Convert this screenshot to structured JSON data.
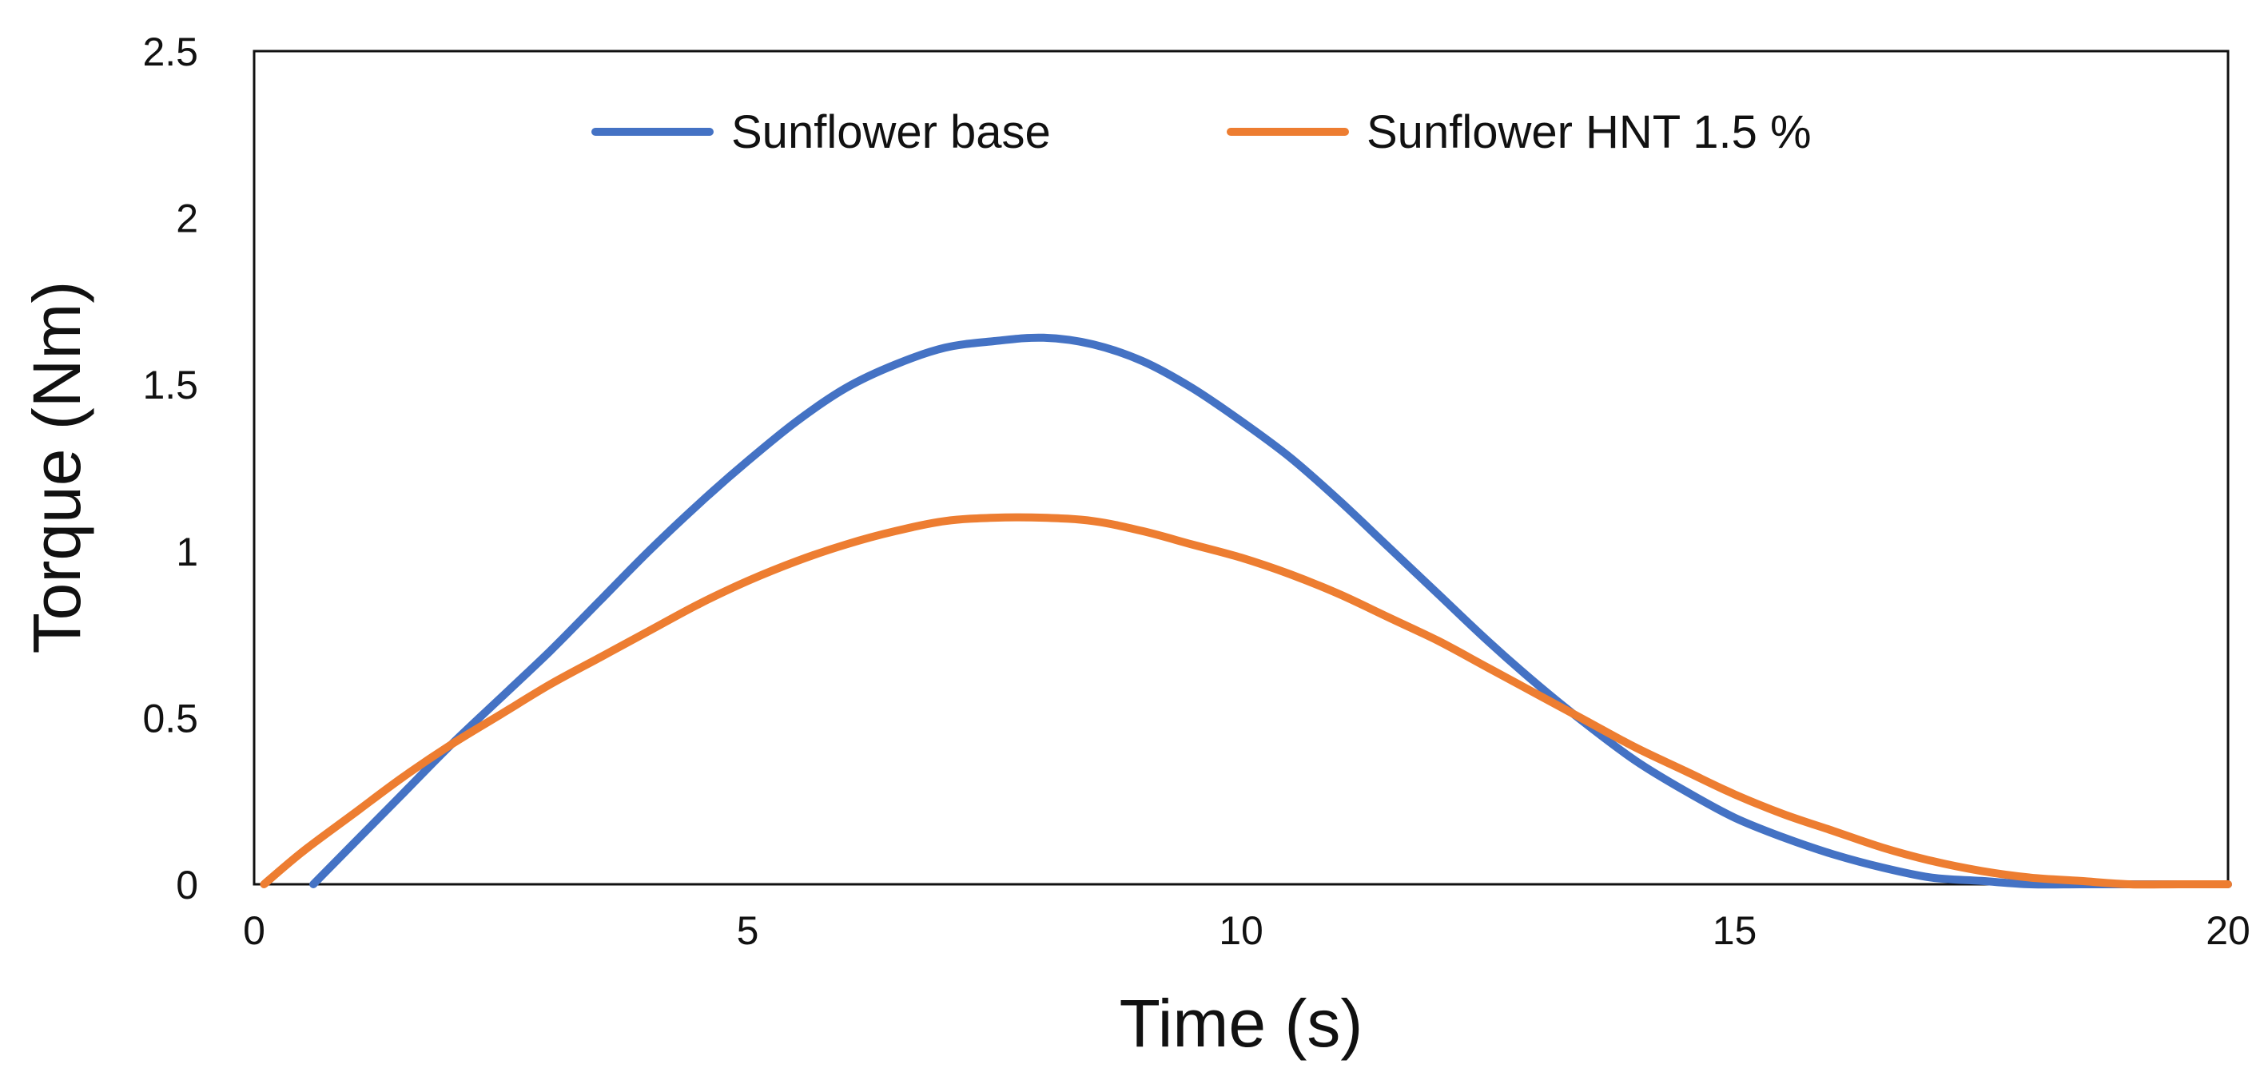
{
  "chart_data": {
    "type": "line",
    "title": "",
    "xlabel": "Time (s)",
    "ylabel": "Torque (Nm)",
    "xlim": [
      0,
      20
    ],
    "ylim": [
      0,
      2.5
    ],
    "xticks": [
      0,
      5,
      10,
      15,
      20
    ],
    "xtick_labels": [
      "0",
      "5",
      "10",
      "15",
      "20"
    ],
    "yticks": [
      0,
      0.5,
      1,
      1.5,
      2,
      2.5
    ],
    "ytick_labels": [
      "0",
      "0.5",
      "1",
      "1.5",
      "2",
      "2.5"
    ],
    "grid": false,
    "legend_position": "top-center",
    "series": [
      {
        "name": "Sunflower base",
        "color": "#4472C4",
        "x": [
          0.6,
          1,
          1.5,
          2,
          2.5,
          3,
          3.5,
          4,
          4.5,
          5,
          5.5,
          6,
          6.5,
          7,
          7.5,
          8,
          8.5,
          9,
          9.5,
          10,
          10.5,
          11,
          11.5,
          12,
          12.5,
          13,
          13.5,
          14,
          14.5,
          15,
          15.5,
          16,
          16.5,
          17,
          17.5,
          18,
          18.5,
          19,
          19.5,
          20
        ],
        "y": [
          0,
          0.12,
          0.27,
          0.42,
          0.56,
          0.7,
          0.85,
          1.0,
          1.14,
          1.27,
          1.39,
          1.49,
          1.56,
          1.61,
          1.63,
          1.64,
          1.62,
          1.57,
          1.49,
          1.39,
          1.28,
          1.15,
          1.01,
          0.87,
          0.73,
          0.6,
          0.48,
          0.37,
          0.28,
          0.2,
          0.14,
          0.09,
          0.05,
          0.02,
          0.01,
          0.0,
          0.0,
          0.0,
          0.0,
          0.0
        ]
      },
      {
        "name": "Sunflower HNT 1.5 %",
        "color": "#ED7D31",
        "x": [
          0.1,
          0.5,
          1,
          1.5,
          2,
          2.5,
          3,
          3.5,
          4,
          4.5,
          5,
          5.5,
          6,
          6.5,
          7,
          7.5,
          8,
          8.5,
          9,
          9.5,
          10,
          10.5,
          11,
          11.5,
          12,
          12.5,
          13,
          13.5,
          14,
          14.5,
          15,
          15.5,
          16,
          16.5,
          17,
          17.5,
          18,
          18.5,
          19,
          19.5,
          20
        ],
        "y": [
          0,
          0.1,
          0.21,
          0.32,
          0.42,
          0.51,
          0.6,
          0.68,
          0.76,
          0.84,
          0.91,
          0.97,
          1.02,
          1.06,
          1.09,
          1.1,
          1.1,
          1.09,
          1.06,
          1.02,
          0.98,
          0.93,
          0.87,
          0.8,
          0.73,
          0.65,
          0.57,
          0.49,
          0.41,
          0.34,
          0.27,
          0.21,
          0.16,
          0.11,
          0.07,
          0.04,
          0.02,
          0.01,
          0.0,
          0.0,
          0.0
        ]
      }
    ]
  }
}
